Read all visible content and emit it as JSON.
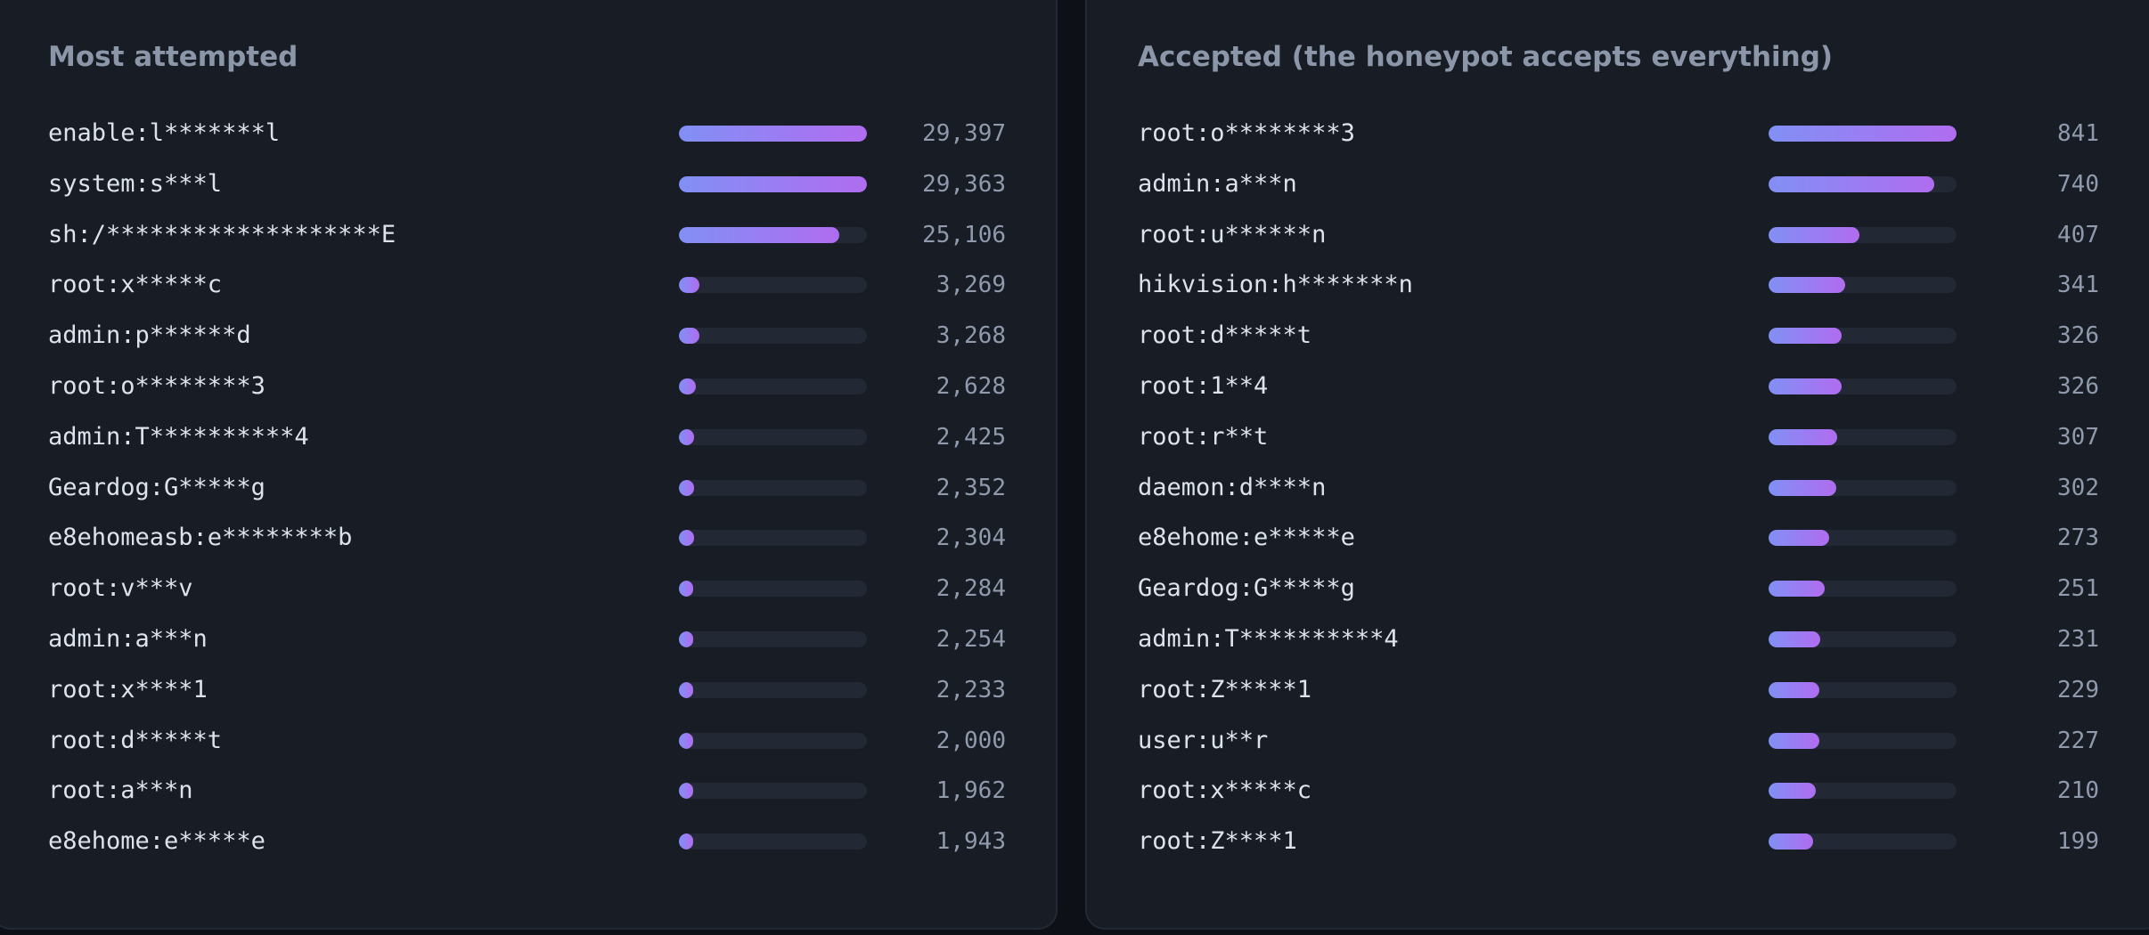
{
  "panels": [
    {
      "title": "Most attempted",
      "rows": [
        {
          "cred": "enable:l*******l",
          "count": "29,397",
          "value": 29397
        },
        {
          "cred": "system:s***l",
          "count": "29,363",
          "value": 29363
        },
        {
          "cred": "sh:/*******************E",
          "count": "25,106",
          "value": 25106
        },
        {
          "cred": "root:x*****c",
          "count": "3,269",
          "value": 3269
        },
        {
          "cred": "admin:p******d",
          "count": "3,268",
          "value": 3268
        },
        {
          "cred": "root:o********3",
          "count": "2,628",
          "value": 2628
        },
        {
          "cred": "admin:T**********4",
          "count": "2,425",
          "value": 2425
        },
        {
          "cred": "Geardog:G*****g",
          "count": "2,352",
          "value": 2352
        },
        {
          "cred": "e8ehomeasb:e********b",
          "count": "2,304",
          "value": 2304
        },
        {
          "cred": "root:v***v",
          "count": "2,284",
          "value": 2284
        },
        {
          "cred": "admin:a***n",
          "count": "2,254",
          "value": 2254
        },
        {
          "cred": "root:x****1",
          "count": "2,233",
          "value": 2233
        },
        {
          "cred": "root:d*****t",
          "count": "2,000",
          "value": 2000
        },
        {
          "cred": "root:a***n",
          "count": "1,962",
          "value": 1962
        },
        {
          "cred": "e8ehome:e*****e",
          "count": "1,943",
          "value": 1943
        }
      ]
    },
    {
      "title": "Accepted (the honeypot accepts everything)",
      "rows": [
        {
          "cred": "root:o********3",
          "count": "841",
          "value": 841
        },
        {
          "cred": "admin:a***n",
          "count": "740",
          "value": 740
        },
        {
          "cred": "root:u******n",
          "count": "407",
          "value": 407
        },
        {
          "cred": "hikvision:h*******n",
          "count": "341",
          "value": 341
        },
        {
          "cred": "root:d*****t",
          "count": "326",
          "value": 326
        },
        {
          "cred": "root:1**4",
          "count": "326",
          "value": 326
        },
        {
          "cred": "root:r**t",
          "count": "307",
          "value": 307
        },
        {
          "cred": "daemon:d****n",
          "count": "302",
          "value": 302
        },
        {
          "cred": "e8ehome:e*****e",
          "count": "273",
          "value": 273
        },
        {
          "cred": "Geardog:G*****g",
          "count": "251",
          "value": 251
        },
        {
          "cred": "admin:T**********4",
          "count": "231",
          "value": 231
        },
        {
          "cred": "root:Z*****1",
          "count": "229",
          "value": 229
        },
        {
          "cred": "user:u**r",
          "count": "227",
          "value": 227
        },
        {
          "cred": "root:x*****c",
          "count": "210",
          "value": 210
        },
        {
          "cred": "root:Z****1",
          "count": "199",
          "value": 199
        }
      ]
    }
  ],
  "colors": {
    "bar_start": "#8190f5",
    "bar_end": "#b06cf0",
    "track": "#222834",
    "panel": "#171c25"
  }
}
